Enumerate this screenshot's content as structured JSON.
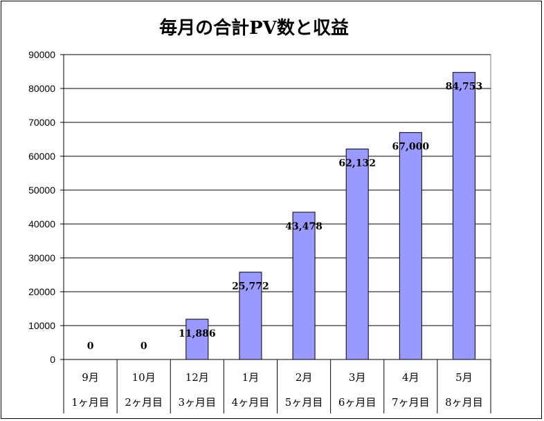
{
  "chart_data": {
    "type": "bar",
    "title": "毎月の合計PV数と収益",
    "categories": [
      "9月",
      "10月",
      "12月",
      "1月",
      "2月",
      "3月",
      "4月",
      "5月"
    ],
    "sub_categories": [
      "1ヶ月目",
      "2ヶ月目",
      "3ヶ月目",
      "4ヶ月目",
      "5ヶ月目",
      "6ヶ月目",
      "7ヶ月目",
      "8ヶ月目"
    ],
    "values": [
      0,
      0,
      11886,
      25772,
      43478,
      62132,
      67000,
      84753
    ],
    "data_labels": [
      "0",
      "0",
      "11,886",
      "25,772",
      "43,478",
      "62,132",
      "67,000",
      "84,753"
    ],
    "ylim": [
      0,
      90000
    ],
    "yticks": [
      "0",
      "10000",
      "20000",
      "30000",
      "40000",
      "50000",
      "60000",
      "70000",
      "80000",
      "90000"
    ],
    "grid": true,
    "colors": {
      "bar": "#9999ff",
      "bar_stroke": "#000000",
      "grid": "#000000"
    }
  }
}
